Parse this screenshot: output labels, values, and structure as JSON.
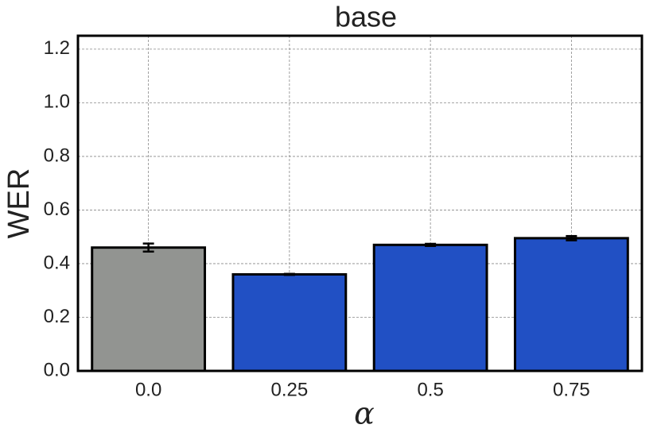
{
  "chart_data": {
    "type": "bar",
    "title": "base",
    "x_label": "α",
    "y_label": "WER",
    "categories": [
      "0.0",
      "0.25",
      "0.5",
      "0.75"
    ],
    "values": [
      0.46,
      0.36,
      0.47,
      0.495
    ],
    "errors": [
      0.015,
      0.002,
      0.004,
      0.008
    ],
    "colors": [
      "#929491",
      "#2150c4",
      "#2150c4",
      "#2150c4"
    ],
    "ylim": [
      0,
      1.25
    ],
    "yticks": [
      {
        "value": 0,
        "label": "0.0"
      },
      0.2,
      0.4,
      0.6,
      0.8,
      {
        "value": 1,
        "label": "1.0"
      },
      1.2
    ],
    "grid": true
  }
}
